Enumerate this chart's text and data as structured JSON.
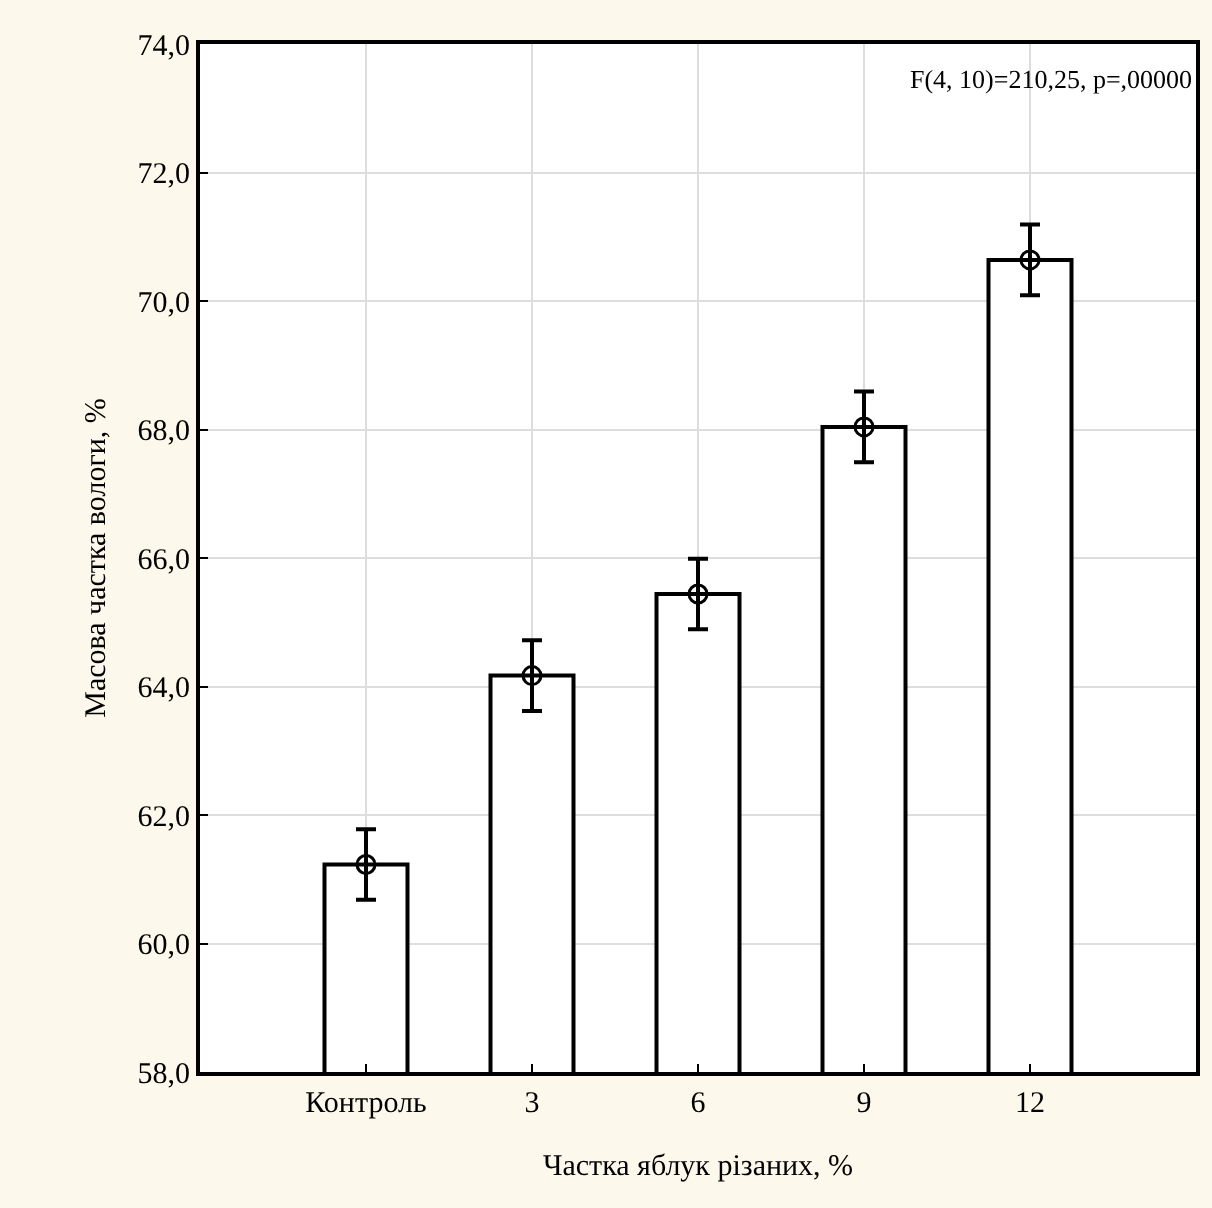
{
  "chart_data": {
    "type": "bar",
    "xlabel": "Частка яблук різаних, %",
    "ylabel": "Масова частка вологи, %",
    "categories": [
      "Контроль",
      "3",
      "6",
      "9",
      "12"
    ],
    "series": [
      {
        "color": "#ffffff",
        "values": [
          61.23,
          64.17,
          65.44,
          68.04,
          70.64
        ]
      },
      {
        "type": "scatter",
        "color": "#000000",
        "x": [
          "Контроль",
          "3",
          "6",
          "9",
          "12"
        ],
        "values": [
          61.23,
          64.17,
          65.44,
          68.04,
          70.64
        ],
        "errors": [
          0.55,
          0.55,
          0.55,
          0.55,
          0.55
        ]
      }
    ],
    "marker": "circle",
    "ylim": [
      58,
      74
    ],
    "yticks": [
      {
        "value": 58,
        "label": "58,0"
      },
      {
        "value": 60,
        "label": "60,0"
      },
      {
        "value": 62,
        "label": "62,0"
      },
      {
        "value": 64,
        "label": "64,0"
      },
      {
        "value": 66,
        "label": "66,0"
      },
      {
        "value": 68,
        "label": "68,0"
      },
      {
        "value": 70,
        "label": "70,0"
      },
      {
        "value": 72,
        "label": "72,0"
      },
      {
        "value": 74,
        "label": "74,0"
      }
    ],
    "grid": true,
    "annotations": [
      "F(4, 10)=210,25, p=,00000"
    ]
  }
}
